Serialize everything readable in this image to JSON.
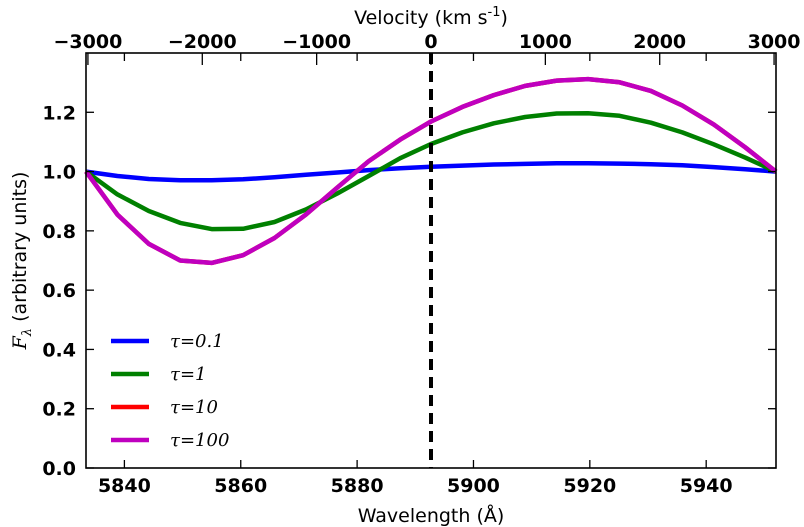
{
  "chart_data": {
    "type": "line",
    "xlabel": "Wavelength (Å)",
    "ylabel": "F_λ (arbitrary units)",
    "top_xlabel": "Velocity (km s^-1)",
    "xlim": [
      5833.4,
      5952.0
    ],
    "ylim": [
      0.0,
      1.4
    ],
    "x_ticks": [
      5840,
      5860,
      5880,
      5900,
      5920,
      5940
    ],
    "y_ticks": [
      0.0,
      0.2,
      0.4,
      0.6,
      0.8,
      1.0,
      1.2
    ],
    "top_ticks": [
      -3000,
      -2000,
      -1000,
      0,
      1000,
      2000,
      3000
    ],
    "x_tick_labels": [
      "5840",
      "5860",
      "5880",
      "5900",
      "5920",
      "5940"
    ],
    "y_tick_labels": [
      "0.0",
      "0.2",
      "0.4",
      "0.6",
      "0.8",
      "1.0",
      "1.2"
    ],
    "top_tick_labels": [
      "−3000",
      "−2000",
      "−1000",
      "0",
      "1000",
      "2000",
      "3000"
    ],
    "vline_x": 5892.7,
    "legend_position": "lower-left",
    "grid": false,
    "x": [
      5833.4,
      5838.8,
      5844.2,
      5849.6,
      5855.0,
      5860.4,
      5865.8,
      5871.2,
      5876.6,
      5882.0,
      5887.4,
      5892.7,
      5898.1,
      5903.5,
      5908.9,
      5914.3,
      5919.7,
      5925.1,
      5930.5,
      5935.9,
      5941.3,
      5946.7,
      5952.0
    ],
    "series": [
      {
        "name": "τ=0.1",
        "color": "#0000ff",
        "values": [
          1.0,
          0.985,
          0.975,
          0.971,
          0.971,
          0.974,
          0.981,
          0.989,
          0.997,
          1.005,
          1.011,
          1.016,
          1.02,
          1.024,
          1.026,
          1.028,
          1.028,
          1.027,
          1.025,
          1.021,
          1.015,
          1.008,
          1.0
        ]
      },
      {
        "name": "τ=1",
        "color": "#008000",
        "values": [
          1.0,
          0.923,
          0.867,
          0.827,
          0.806,
          0.807,
          0.83,
          0.872,
          0.926,
          0.985,
          1.045,
          1.093,
          1.132,
          1.163,
          1.184,
          1.196,
          1.197,
          1.188,
          1.165,
          1.132,
          1.092,
          1.047,
          1.0
        ]
      },
      {
        "name": "τ=10",
        "color": "#ff0000",
        "values": [
          1.0,
          0.855,
          0.756,
          0.7,
          0.692,
          0.718,
          0.776,
          0.855,
          0.946,
          1.035,
          1.108,
          1.169,
          1.218,
          1.258,
          1.289,
          1.307,
          1.312,
          1.301,
          1.272,
          1.223,
          1.159,
          1.082,
          1.0
        ]
      },
      {
        "name": "τ=100",
        "color": "#bf00bf",
        "values": [
          1.0,
          0.855,
          0.756,
          0.7,
          0.692,
          0.718,
          0.776,
          0.855,
          0.946,
          1.035,
          1.108,
          1.169,
          1.218,
          1.258,
          1.289,
          1.307,
          1.312,
          1.301,
          1.272,
          1.223,
          1.159,
          1.082,
          1.0
        ]
      }
    ]
  }
}
